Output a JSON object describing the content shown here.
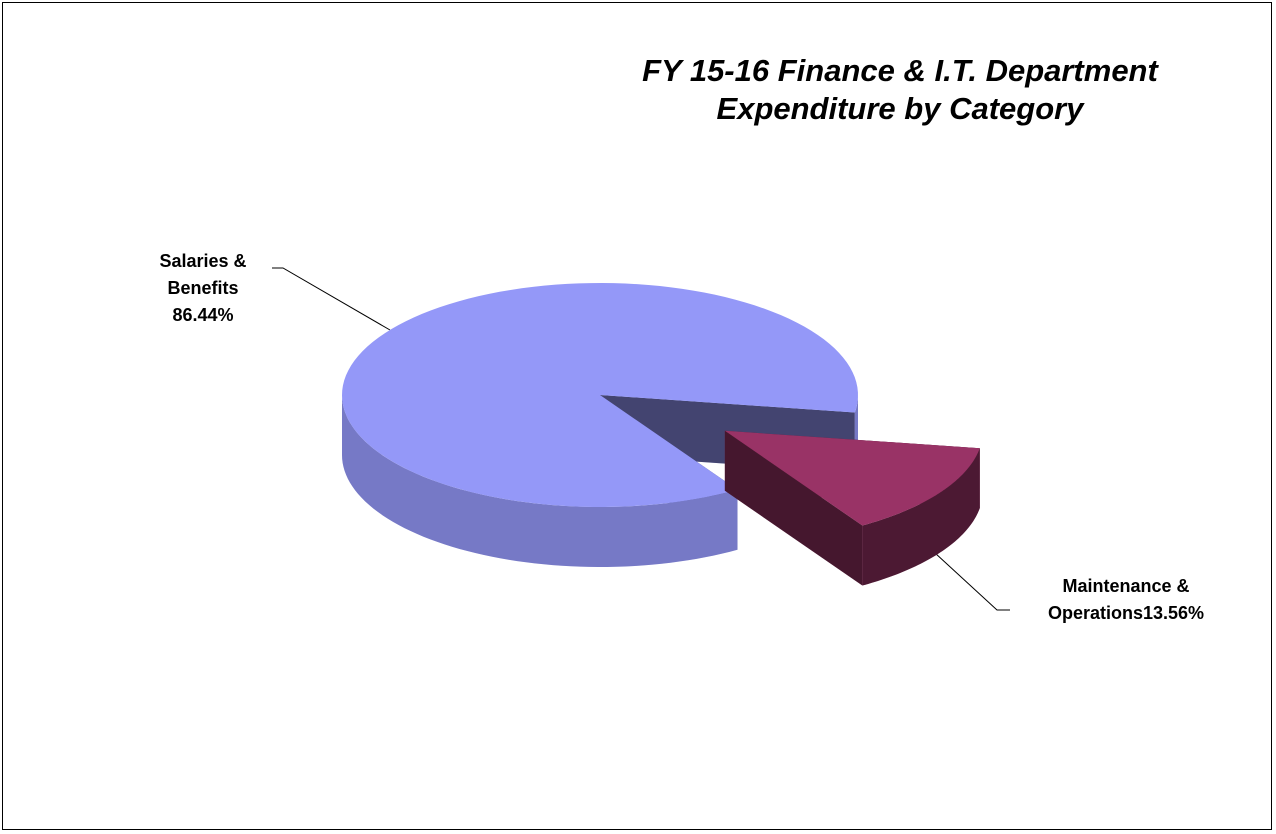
{
  "chart_data": {
    "type": "pie",
    "title": "FY 15-16 Finance & I.T. Department Expenditure by Category",
    "categories": [
      "Salaries & Benefits",
      "Maintenance & Operations"
    ],
    "values": [
      86.44,
      13.56
    ],
    "value_labels": [
      "86.44%",
      "13.56%"
    ],
    "colors": [
      "#9498f8",
      "#993366"
    ]
  }
}
